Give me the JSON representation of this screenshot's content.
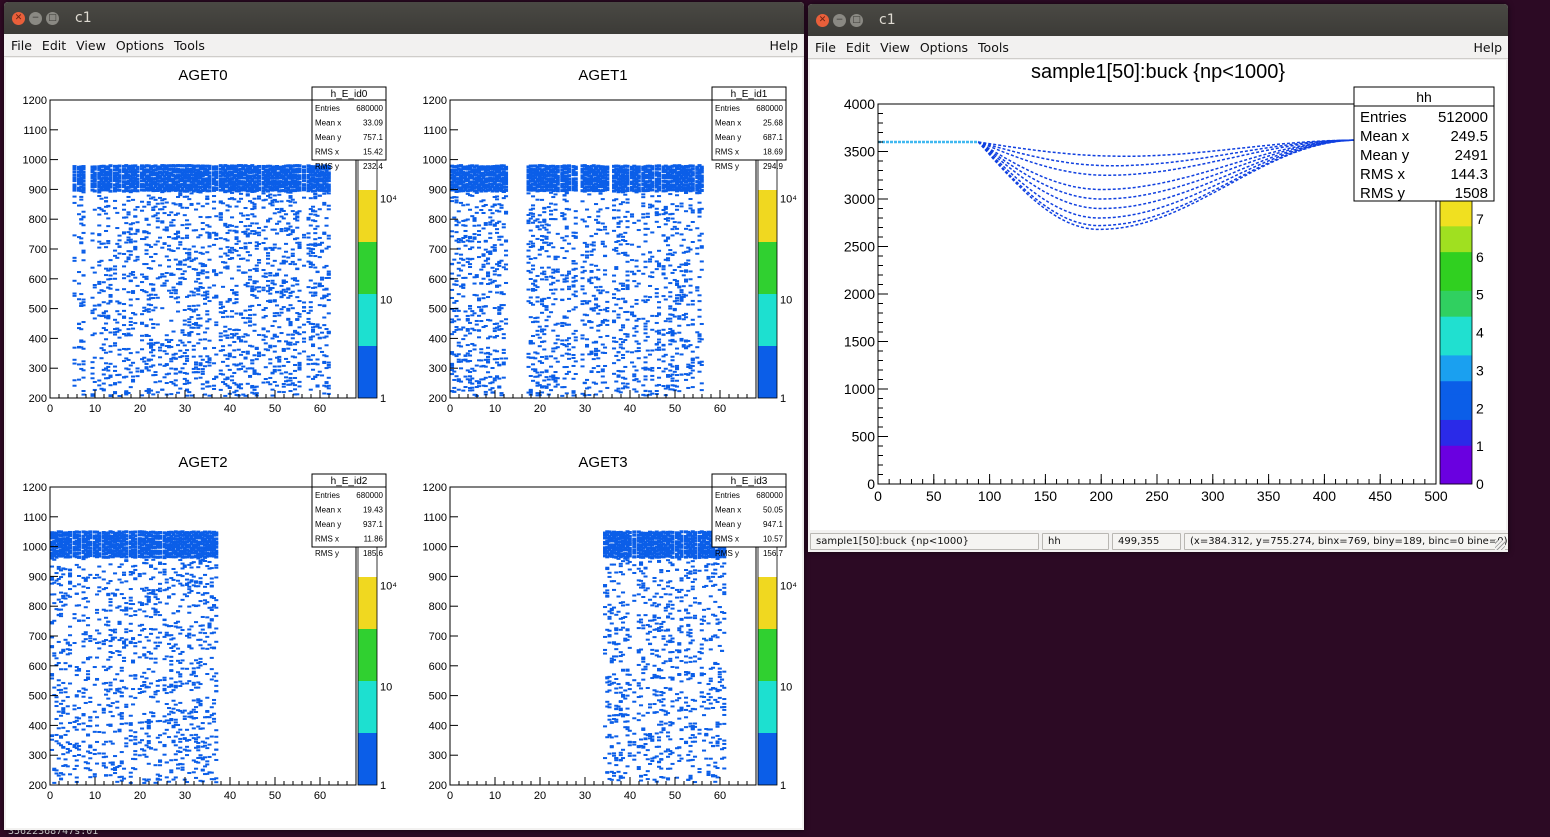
{
  "left_window": {
    "title": "c1",
    "menu": [
      "File",
      "Edit",
      "View",
      "Options",
      "Tools"
    ],
    "help": "Help",
    "pads": [
      {
        "title": "AGET0",
        "stats_name": "h_E_id0",
        "entries": "680000",
        "mean_x": "33.09",
        "mean_y": "757.1",
        "rms_x": "15.42",
        "rms_y": "232.4"
      },
      {
        "title": "AGET1",
        "stats_name": "h_E_id1",
        "entries": "680000",
        "mean_x": "25.68",
        "mean_y": "687.1",
        "rms_x": "18.69",
        "rms_y": "294.9"
      },
      {
        "title": "AGET2",
        "stats_name": "h_E_id2",
        "entries": "680000",
        "mean_x": "19.43",
        "mean_y": "937.1",
        "rms_x": "11.86",
        "rms_y": "185.6"
      },
      {
        "title": "AGET3",
        "stats_name": "h_E_id3",
        "entries": "680000",
        "mean_x": "50.05",
        "mean_y": "947.1",
        "rms_x": "10.57",
        "rms_y": "156.7"
      }
    ],
    "stat_labels": {
      "entries": "Entries",
      "mean_x": "Mean x",
      "mean_y": "Mean y",
      "rms_x": "RMS x",
      "rms_y": "RMS y"
    },
    "x_ticks": [
      "0",
      "10",
      "20",
      "30",
      "40",
      "50",
      "60"
    ],
    "y_ticks": [
      "200",
      "300",
      "400",
      "500",
      "600",
      "700",
      "800",
      "900",
      "1000",
      "1100",
      "1200"
    ],
    "z_ticks": [
      "1",
      "10",
      "10⁴"
    ]
  },
  "right_window": {
    "title": "c1",
    "menu": [
      "File",
      "Edit",
      "View",
      "Options",
      "Tools"
    ],
    "help": "Help",
    "plot_title": "sample1[50]:buck {np<1000}",
    "stats": {
      "name": "hh",
      "entries": "512000",
      "mean_x": "249.5",
      "mean_y": "2491",
      "rms_x": "144.3",
      "rms_y": "1508"
    },
    "x_ticks": [
      "0",
      "50",
      "100",
      "150",
      "200",
      "250",
      "300",
      "350",
      "400",
      "450",
      "500"
    ],
    "y_ticks": [
      "0",
      "500",
      "1000",
      "1500",
      "2000",
      "2500",
      "3000",
      "3500",
      "4000"
    ],
    "z_ticks": [
      "0",
      "1",
      "2",
      "3",
      "4",
      "5",
      "6",
      "7"
    ],
    "status": [
      "sample1[50]:buck {np<1000}",
      "hh",
      "499,355",
      "(x=384.312, y=755.274, binx=769, biny=189, binc=0 bine=0)"
    ]
  },
  "colors": {
    "histogram_blue": "#0b5ee8",
    "palette": [
      "#6a00e0",
      "#2a2ae8",
      "#0b5ee8",
      "#1aa0f0",
      "#20e0d0",
      "#30d060",
      "#30d020",
      "#a0e020",
      "#f0e020"
    ]
  },
  "desktop": {
    "bottom_text": "35622368747s:01"
  },
  "chart_data": [
    {
      "type": "heatmap",
      "title": "AGET0",
      "xlim": [
        0,
        68
      ],
      "ylim": [
        200,
        1200
      ],
      "z_scale": "log",
      "legend": "top-right"
    },
    {
      "type": "heatmap",
      "title": "AGET1",
      "xlim": [
        0,
        68
      ],
      "ylim": [
        200,
        1200
      ],
      "z_scale": "log",
      "legend": "top-right"
    },
    {
      "type": "heatmap",
      "title": "AGET2",
      "xlim": [
        0,
        68
      ],
      "ylim": [
        200,
        1200
      ],
      "z_scale": "log",
      "legend": "top-right"
    },
    {
      "type": "heatmap",
      "title": "AGET3",
      "xlim": [
        0,
        68
      ],
      "ylim": [
        200,
        1200
      ],
      "z_scale": "log",
      "legend": "top-right"
    },
    {
      "type": "heatmap",
      "title": "sample1[50]:buck {np<1000}",
      "xlim": [
        0,
        500
      ],
      "ylim": [
        0,
        4000
      ],
      "legend": "top-right",
      "series_curves": [
        {
          "baseline": 3600,
          "min": 3450,
          "min_x": 220
        },
        {
          "baseline": 3600,
          "min": 3350,
          "min_x": 210
        },
        {
          "baseline": 3600,
          "min": 3250,
          "min_x": 205
        },
        {
          "baseline": 3600,
          "min": 3100,
          "min_x": 200
        },
        {
          "baseline": 3600,
          "min": 3000,
          "min_x": 200
        },
        {
          "baseline": 3600,
          "min": 2900,
          "min_x": 200
        },
        {
          "baseline": 3600,
          "min": 2800,
          "min_x": 198
        },
        {
          "baseline": 3600,
          "min": 2720,
          "min_x": 198
        },
        {
          "baseline": 3600,
          "min": 2680,
          "min_x": 198
        }
      ]
    }
  ]
}
